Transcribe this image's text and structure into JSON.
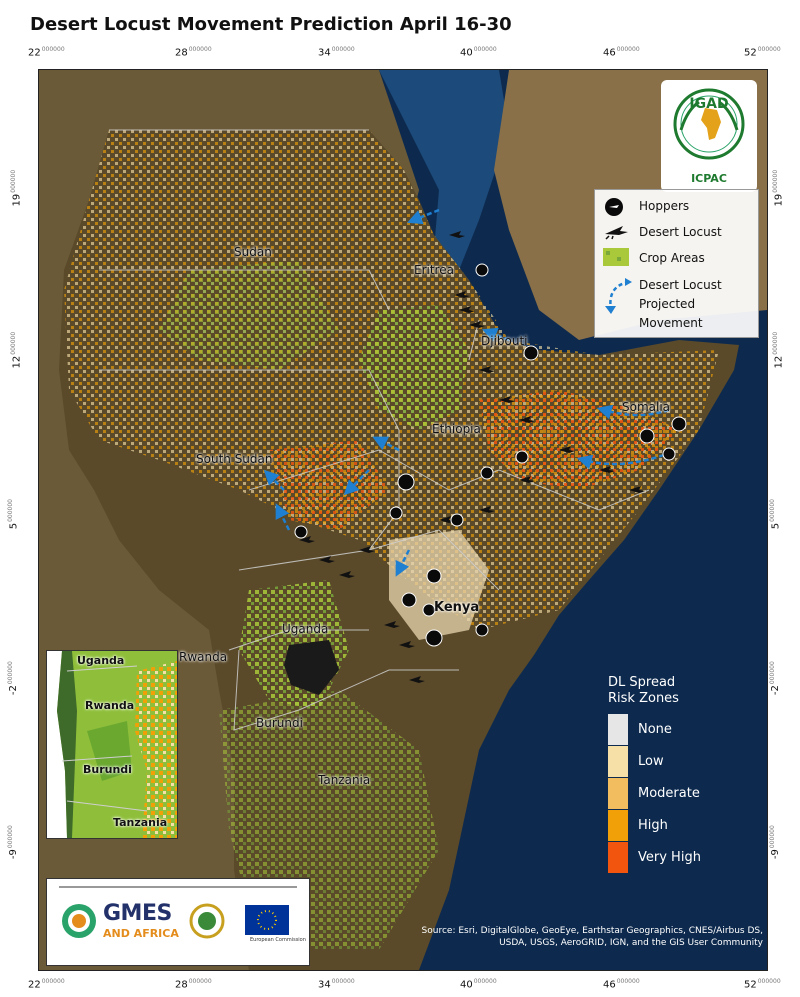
{
  "title": "Desert Locust Movement Prediction April 16-30",
  "axes": {
    "lon_ticks": [
      {
        "value": "22",
        "sup": "000000"
      },
      {
        "value": "28",
        "sup": "000000"
      },
      {
        "value": "34",
        "sup": "000000"
      },
      {
        "value": "40",
        "sup": "000000"
      },
      {
        "value": "46",
        "sup": "000000"
      },
      {
        "value": "52",
        "sup": "000000"
      }
    ],
    "lat_ticks": [
      {
        "value": "19",
        "sup": "000000"
      },
      {
        "value": "12",
        "sup": "000000"
      },
      {
        "value": "5",
        "sup": "000000"
      },
      {
        "value": "-2",
        "sup": "000000"
      },
      {
        "value": "-9",
        "sup": "000000"
      }
    ]
  },
  "countries": {
    "sudan": "Sudan",
    "eritrea": "Eritrea",
    "djibouti": "Djibouti",
    "somalia": "Somalia",
    "ethiopia": "Ethiopia",
    "south_sudan": "South Sudan",
    "uganda": "Uganda",
    "kenya": "Kenya",
    "rwanda": "Rwanda",
    "burundi": "Burundi",
    "tanzania": "Tanzania"
  },
  "logo": {
    "org": "IGAD",
    "sub": "ICPAC"
  },
  "legend": {
    "hoppers": "Hoppers",
    "desert_locust": "Desert Locust",
    "crop_areas": "Crop Areas",
    "projected_movement": [
      "Desert Locust",
      "Projected",
      "Movement"
    ]
  },
  "risk_legend": {
    "title_line1": "DL Spread",
    "title_line2": "Risk Zones",
    "items": [
      {
        "label": "None",
        "color": "#e6e6e6"
      },
      {
        "label": "Low",
        "color": "#f7e0a8"
      },
      {
        "label": "Moderate",
        "color": "#f2bd5e"
      },
      {
        "label": "High",
        "color": "#f2a007"
      },
      {
        "label": "Very High",
        "color": "#f2560e"
      }
    ]
  },
  "inset": {
    "uganda": "Uganda",
    "rwanda": "Rwanda",
    "burundi": "Burundi",
    "tanzania": "Tanzania"
  },
  "logos": {
    "gmes": "GMES",
    "gmes_sub": "AND AFRICA",
    "ec": "European Commission"
  },
  "attribution": "Source: Esri, DigitalGlobe, GeoEye, Earthstar Geographics, CNES/Airbus DS, USDA, USGS, AeroGRID, IGN, and the GIS User Community",
  "colors": {
    "ocean": "#0d2a4e",
    "land_dark": "#5a4a2a",
    "crop": "#a9c93a",
    "arrow": "#1f7fd0"
  }
}
